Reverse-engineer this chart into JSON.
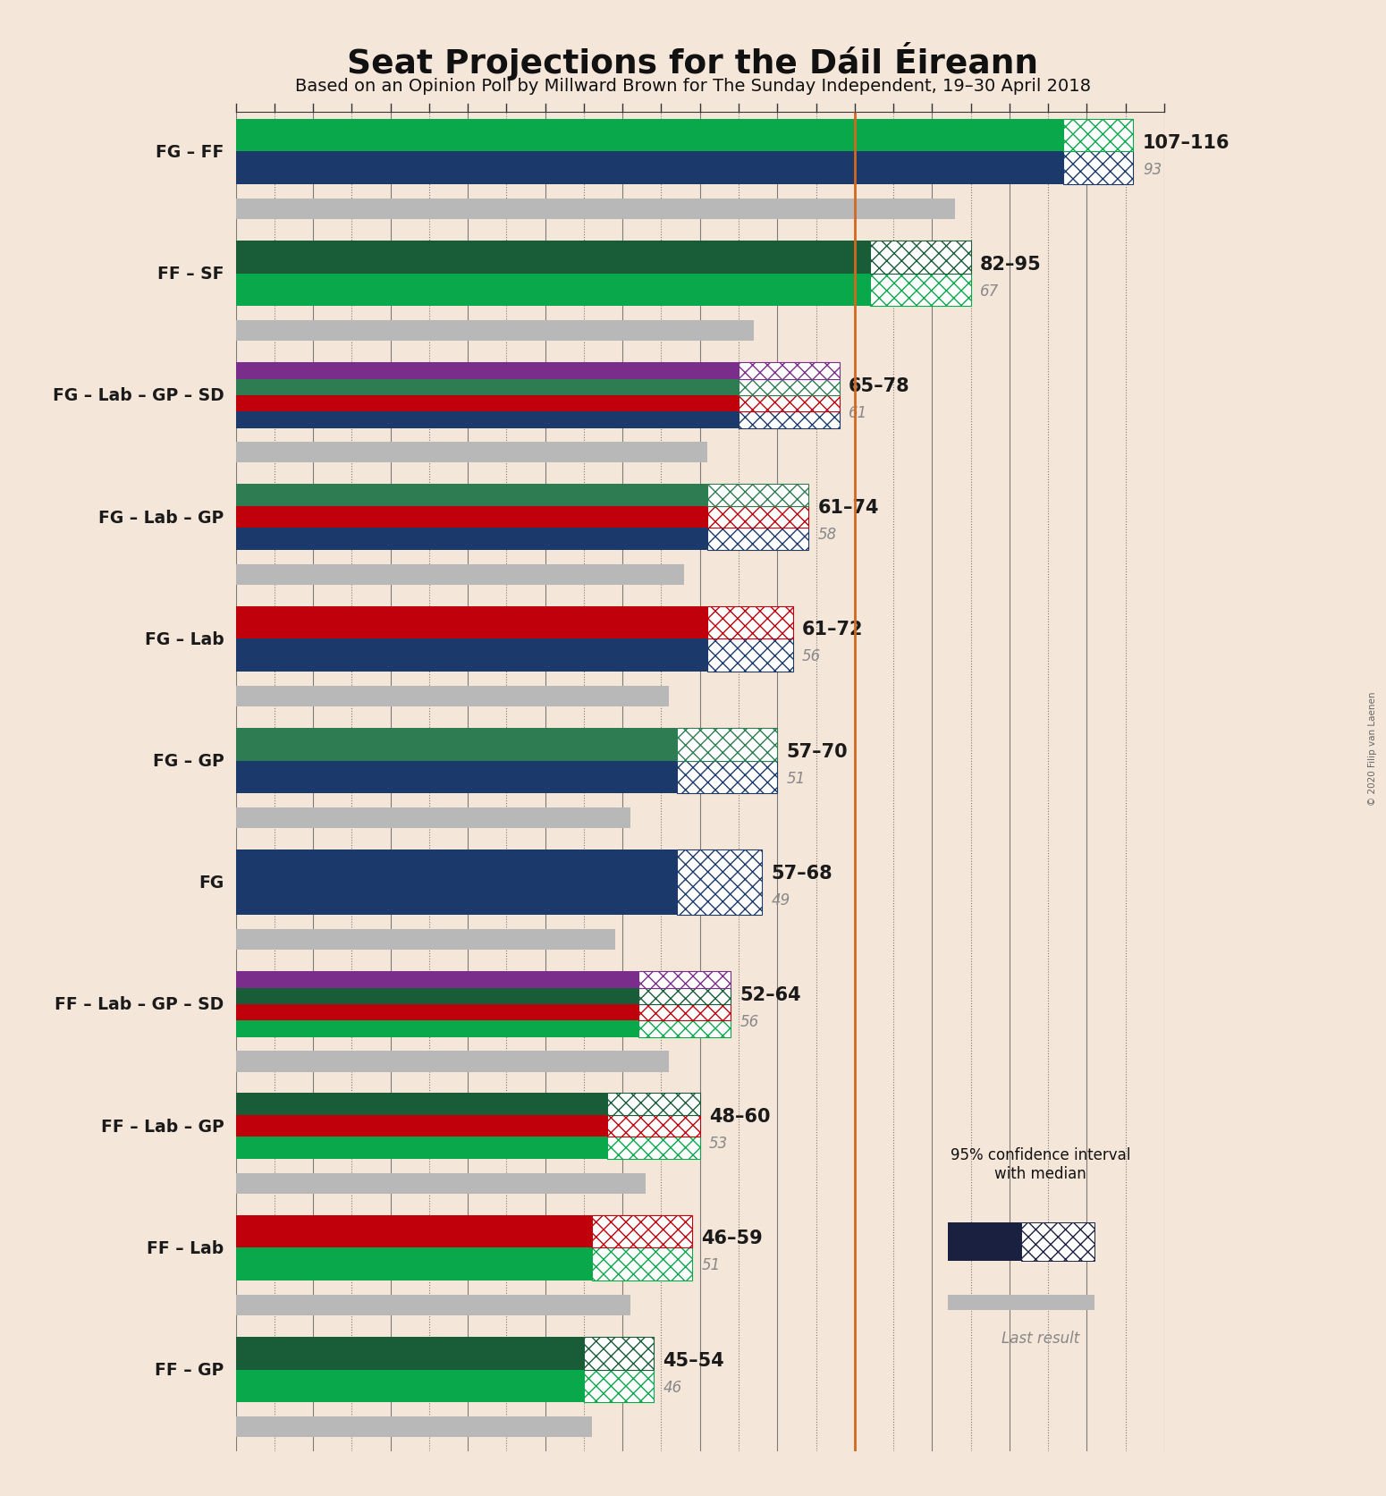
{
  "title": "Seat Projections for the Dáil Éireann",
  "subtitle": "Based on an Opinion Poll by Millward Brown for The Sunday Independent, 19–30 April 2018",
  "copyright": "© 2020 Filip van Laenen",
  "background_color": "#f5e6da",
  "majority_line": 80,
  "xlim_max": 120,
  "coalitions": [
    {
      "label": "FG – FF",
      "range_label": "107–116",
      "median": 107,
      "ci_high": 116,
      "last_result": 93,
      "party_colors": [
        "#1b3a6b",
        "#09a84a"
      ]
    },
    {
      "label": "FF – SF",
      "range_label": "82–95",
      "median": 82,
      "ci_high": 95,
      "last_result": 67,
      "party_colors": [
        "#09a84a",
        "#185c38"
      ]
    },
    {
      "label": "FG – Lab – GP – SD",
      "range_label": "65–78",
      "median": 65,
      "ci_high": 78,
      "last_result": 61,
      "party_colors": [
        "#1b3a6b",
        "#c0000a",
        "#2e7d52",
        "#7b2d8b"
      ]
    },
    {
      "label": "FG – Lab – GP",
      "range_label": "61–74",
      "median": 61,
      "ci_high": 74,
      "last_result": 58,
      "party_colors": [
        "#1b3a6b",
        "#c0000a",
        "#2e7d52"
      ]
    },
    {
      "label": "FG – Lab",
      "range_label": "61–72",
      "median": 61,
      "ci_high": 72,
      "last_result": 56,
      "party_colors": [
        "#1b3a6b",
        "#c0000a"
      ]
    },
    {
      "label": "FG – GP",
      "range_label": "57–70",
      "median": 57,
      "ci_high": 70,
      "last_result": 51,
      "party_colors": [
        "#1b3a6b",
        "#2e7d52"
      ]
    },
    {
      "label": "FG",
      "range_label": "57–68",
      "median": 57,
      "ci_high": 68,
      "last_result": 49,
      "party_colors": [
        "#1b3a6b"
      ]
    },
    {
      "label": "FF – Lab – GP – SD",
      "range_label": "52–64",
      "median": 52,
      "ci_high": 64,
      "last_result": 56,
      "party_colors": [
        "#09a84a",
        "#c0000a",
        "#185c38",
        "#7b2d8b"
      ]
    },
    {
      "label": "FF – Lab – GP",
      "range_label": "48–60",
      "median": 48,
      "ci_high": 60,
      "last_result": 53,
      "party_colors": [
        "#09a84a",
        "#c0000a",
        "#185c38"
      ]
    },
    {
      "label": "FF – Lab",
      "range_label": "46–59",
      "median": 46,
      "ci_high": 59,
      "last_result": 51,
      "party_colors": [
        "#09a84a",
        "#c0000a"
      ]
    },
    {
      "label": "FF – GP",
      "range_label": "45–54",
      "median": 45,
      "ci_high": 54,
      "last_result": 46,
      "party_colors": [
        "#09a84a",
        "#185c38"
      ]
    }
  ],
  "majority_color": "#d2691e",
  "last_result_color": "#b8b8b8",
  "label_color": "#1a1a1a",
  "range_label_color": "#1a1a1a",
  "last_result_text_color": "#888888",
  "tick_interval": 10,
  "minor_tick_interval": 5
}
